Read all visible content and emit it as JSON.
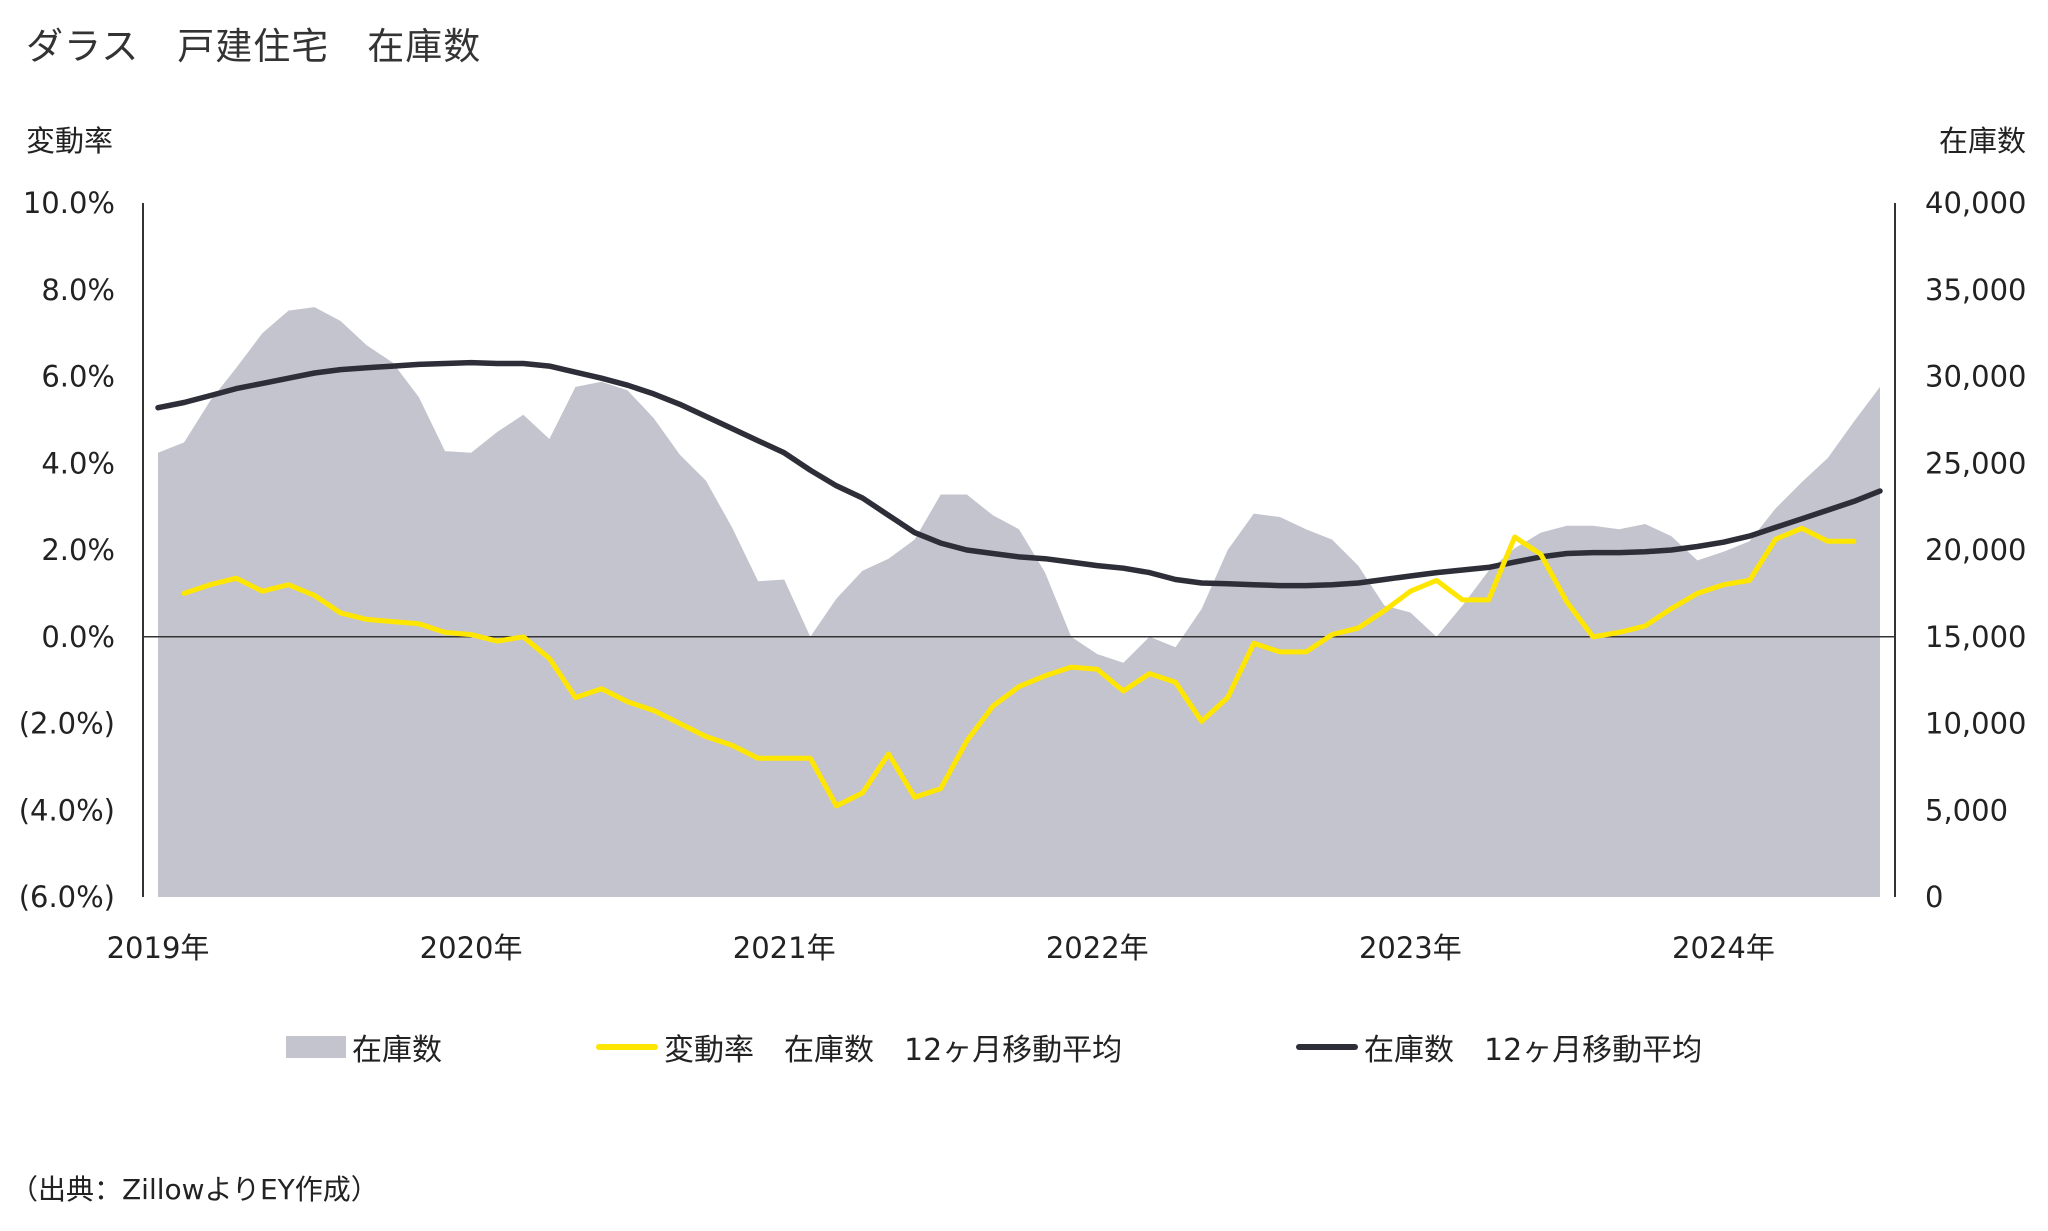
{
  "title": "ダラス　戸建住宅　在庫数",
  "source": "（出典：ZillowよりEY作成）",
  "chart_data": {
    "type": "line",
    "left_axis": {
      "title": "変動率",
      "min": -6,
      "max": 10,
      "step": 2,
      "ticks": [
        "10.0%",
        "8.0%",
        "6.0%",
        "4.0%",
        "2.0%",
        "0.0%",
        "(2.0%)",
        "(4.0%)",
        "(6.0%)"
      ]
    },
    "right_axis": {
      "title": "在庫数",
      "min": 0,
      "max": 40000,
      "step": 5000,
      "ticks": [
        "40,000",
        "35,000",
        "30,000",
        "25,000",
        "20,000",
        "15,000",
        "10,000",
        "5,000",
        "0"
      ]
    },
    "x_axis": {
      "labels": [
        "2019年",
        "2020年",
        "2021年",
        "2022年",
        "2023年",
        "2024年"
      ],
      "start": "2019-01",
      "months": 66
    },
    "zero_line": true,
    "series": [
      {
        "name": "在庫数",
        "type": "area",
        "axis": "right",
        "color": "#c4c4cf",
        "values": [
          25600,
          26200,
          28600,
          30500,
          32500,
          33800,
          34000,
          33200,
          31800,
          30800,
          28800,
          25700,
          25600,
          26800,
          27800,
          26400,
          29400,
          29700,
          29200,
          27600,
          25500,
          24000,
          21300,
          18200,
          18300,
          15000,
          17200,
          18800,
          19500,
          20600,
          23200,
          23200,
          22000,
          21200,
          18700,
          15000,
          14000,
          13500,
          15000,
          14400,
          16600,
          20000,
          22100,
          21900,
          21200,
          20600,
          19100,
          16800,
          16400,
          15000,
          16800,
          18800,
          20100,
          21000,
          21400,
          21400,
          21200,
          21500,
          20800,
          19400,
          19900,
          20500,
          22400,
          23900,
          25300,
          27400,
          29400
        ]
      },
      {
        "name": "変動率　在庫数　12ヶ月移動平均",
        "type": "line",
        "axis": "left",
        "color": "#ffe600",
        "start_index": 1,
        "values": [
          1.0,
          1.2,
          1.35,
          1.05,
          1.2,
          0.95,
          0.55,
          0.4,
          0.35,
          0.3,
          0.1,
          0.05,
          -0.1,
          0.0,
          -0.5,
          -1.4,
          -1.2,
          -1.5,
          -1.7,
          -2.0,
          -2.3,
          -2.5,
          -2.8,
          -2.8,
          -2.8,
          -3.9,
          -3.6,
          -2.7,
          -3.7,
          -3.5,
          -2.4,
          -1.6,
          -1.15,
          -0.9,
          -0.7,
          -0.75,
          -1.25,
          -0.85,
          -1.05,
          -1.95,
          -1.4,
          -0.15,
          -0.35,
          -0.35,
          0.05,
          0.2,
          0.6,
          1.05,
          1.3,
          0.85,
          0.85,
          2.3,
          1.9,
          0.8,
          0.0,
          0.1,
          0.25,
          0.65,
          1.0,
          1.2,
          1.3,
          2.25,
          2.5,
          2.2,
          2.2
        ]
      },
      {
        "name": "在庫数　12ヶ月移動平均",
        "type": "line",
        "axis": "right",
        "color": "#2e2e38",
        "values": [
          28200,
          28500,
          28900,
          29300,
          29600,
          29900,
          30200,
          30400,
          30500,
          30600,
          30700,
          30750,
          30800,
          30750,
          30750,
          30600,
          30250,
          29900,
          29500,
          29000,
          28400,
          27700,
          27000,
          26300,
          25600,
          24600,
          23700,
          23000,
          22000,
          21000,
          20400,
          20000,
          19800,
          19600,
          19500,
          19300,
          19100,
          18950,
          18700,
          18300,
          18100,
          18050,
          18000,
          17950,
          17950,
          18000,
          18100,
          18300,
          18500,
          18700,
          18850,
          19000,
          19300,
          19600,
          19800,
          19850,
          19850,
          19900,
          20000,
          20200,
          20450,
          20800,
          21300,
          21800,
          22300,
          22800,
          23400
        ]
      }
    ]
  }
}
